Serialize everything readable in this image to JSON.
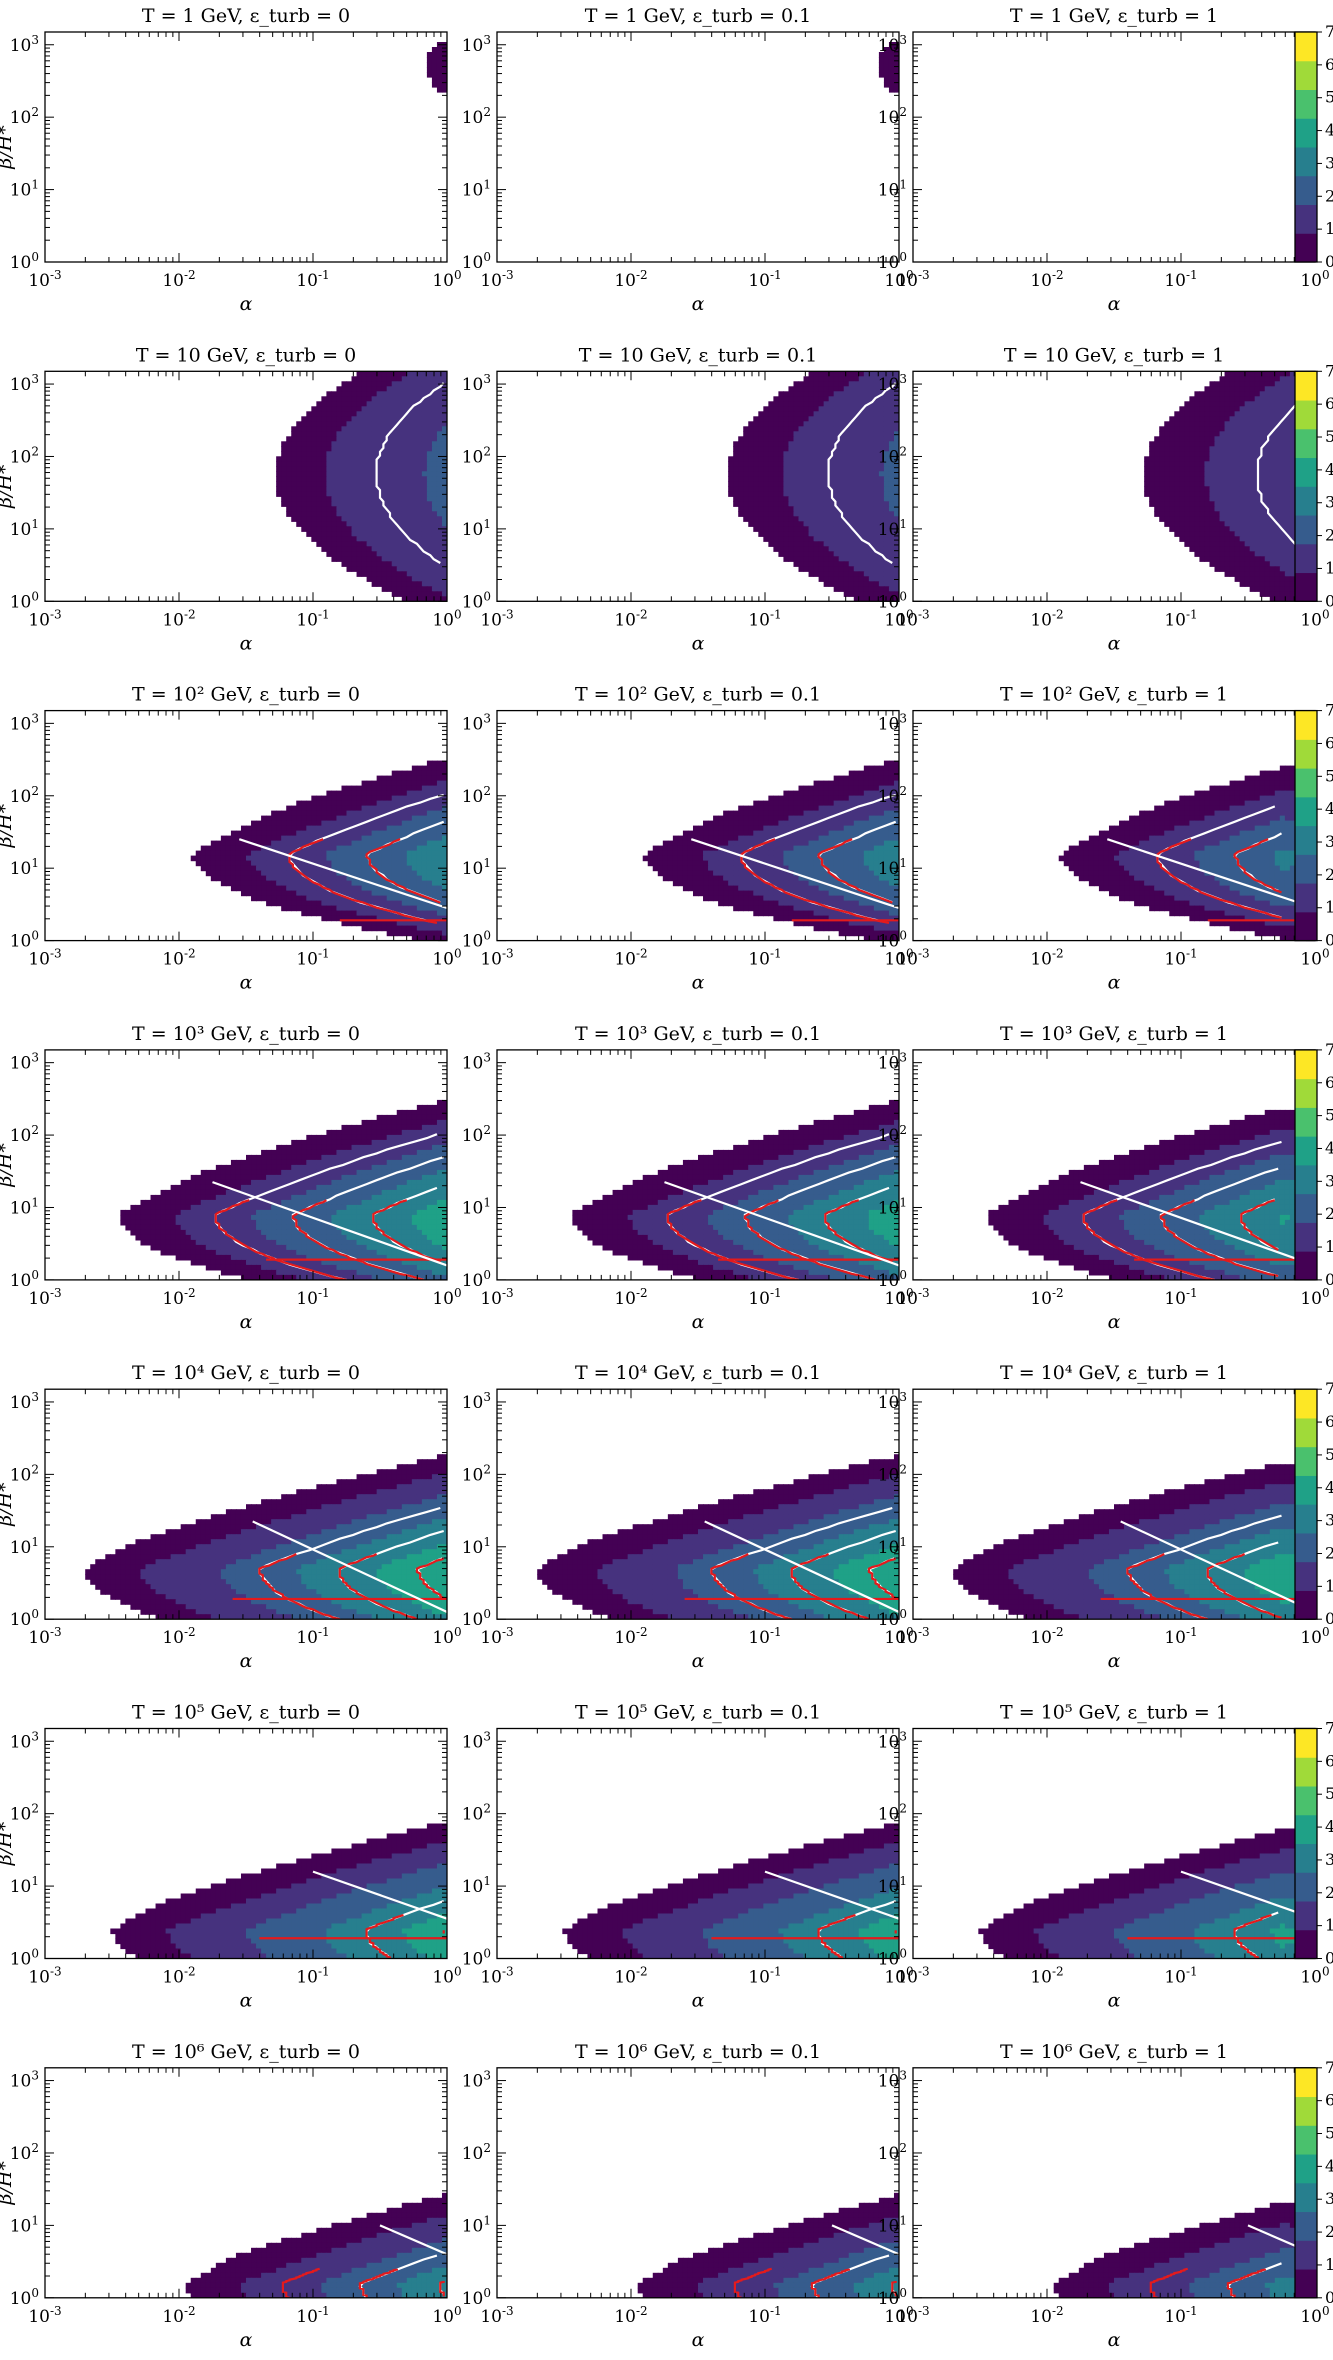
{
  "chart_data": {
    "type": "contour",
    "layout": {
      "rows": 7,
      "cols": 3
    },
    "x_axis": {
      "label": "α",
      "scale": "log",
      "range": [
        0.001,
        1
      ],
      "ticks": [
        0.001,
        0.01,
        0.1,
        1
      ],
      "tick_labels": [
        "10^-3",
        "10^-2",
        "10^-1",
        "10^0"
      ]
    },
    "y_axis": {
      "label": "β/H*",
      "scale": "log",
      "range": [
        1,
        1500
      ],
      "ticks": [
        1,
        10,
        100,
        1000
      ],
      "tick_labels": [
        "10^0",
        "10^1",
        "10^2",
        "10^3"
      ]
    },
    "colorbar": {
      "ticks": [
        0,
        1,
        2,
        3,
        4,
        5,
        6,
        7
      ],
      "colors": [
        "#440154",
        "#46327e",
        "#365c8d",
        "#277f8e",
        "#1fa187",
        "#4ac16d",
        "#a0da39",
        "#fde725"
      ]
    },
    "contour_colors": {
      "white": "#ffffff",
      "red": "#e41a1c"
    },
    "rows": [
      {
        "T": "T = 1 GeV",
        "temp_label": "1",
        "levels": {
          "start": -0.4,
          "slope": 0.0,
          "curv": 0.0,
          "tipAlpha": -0.15,
          "depth": 0.35,
          "reach": 1
        },
        "white": [],
        "red": [],
        "diag": null,
        "red_floor": false
      },
      {
        "T": "T = 10 GeV",
        "temp_label": "10",
        "levels": {
          "start": -1.28,
          "center": 1.75,
          "width": 1.45,
          "max": 2.3
        },
        "white": [
          1.5,
          2.5
        ],
        "red": [],
        "diag": null,
        "red_floor": false
      },
      {
        "T": "T = 10^2 GeV",
        "temp_label": "10^2",
        "levels": {
          "start": -1.9,
          "peakY": 1.2,
          "max": 4.0
        },
        "white": [
          1.5,
          2.5,
          3.5
        ],
        "red": [
          1.5,
          2.5,
          3.5
        ],
        "diag": [
          [
            -1.55,
            1.4
          ],
          [
            0.0,
            0.45
          ]
        ],
        "red_floor": true
      },
      {
        "T": "T = 10^3 GeV",
        "temp_label": "10^3",
        "levels": {
          "start": -2.45,
          "peakY": 0.9,
          "max": 5.5
        },
        "white": [
          1.5,
          2.5,
          3.5,
          4.5
        ],
        "red": [
          1.5,
          2.5,
          3.5,
          4.5,
          5.5
        ],
        "diag": [
          [
            -1.75,
            1.35
          ],
          [
            0.0,
            0.2
          ]
        ],
        "red_floor": true
      },
      {
        "T": "T = 10^4 GeV",
        "temp_label": "10^4",
        "levels": {
          "start": -2.7,
          "peakY": 0.7,
          "max": 6.6
        },
        "white": [
          2.5,
          3.5,
          4.5,
          5.5
        ],
        "red": [
          2.5,
          3.5,
          4.5,
          5.5,
          6.5
        ],
        "diag": [
          [
            -1.45,
            1.35
          ],
          [
            0.0,
            0.1
          ]
        ],
        "red_floor": true
      },
      {
        "T": "T = 10^5 GeV",
        "temp_label": "10^5",
        "levels": {
          "start": -2.5,
          "peakY": 0.4,
          "max": 7.0
        },
        "white": [
          3.5,
          4.5,
          5.5,
          6.5
        ],
        "red": [
          3.5,
          4.5,
          5.5,
          6.5
        ],
        "diag": [
          [
            -1.0,
            1.2
          ],
          [
            0.0,
            0.55
          ]
        ],
        "red_floor": true
      },
      {
        "T": "T = 10^6 GeV",
        "temp_label": "10^6",
        "levels": {
          "start": -1.95,
          "peakY": 0.2,
          "max": 4.2
        },
        "white": [
          2.5,
          3.5
        ],
        "red": [
          1.5,
          2.5,
          3.5
        ],
        "diag": [
          [
            -0.5,
            1.0
          ],
          [
            0.0,
            0.6
          ]
        ],
        "red_floor": false
      }
    ],
    "columns": [
      {
        "eps_label": "ε_turb = 0",
        "eps": "0"
      },
      {
        "eps_label": "ε_turb = 0.1",
        "eps": "0.1"
      },
      {
        "eps_label": "ε_turb = 1",
        "eps": "1"
      }
    ],
    "titles": [
      [
        "T = 1 GeV, ε_turb = 0",
        "T = 1 GeV, ε_turb = 0.1",
        "T = 1 GeV, ε_turb = 1"
      ],
      [
        "T = 10 GeV, ε_turb = 0",
        "T = 10 GeV, ε_turb = 0.1",
        "T = 10 GeV, ε_turb = 1"
      ],
      [
        "T = 10² GeV, ε_turb = 0",
        "T = 10² GeV, ε_turb = 0.1",
        "T = 10² GeV, ε_turb = 1"
      ],
      [
        "T = 10³ GeV, ε_turb = 0",
        "T = 10³ GeV, ε_turb = 0.1",
        "T = 10³ GeV, ε_turb = 1"
      ],
      [
        "T = 10⁴ GeV, ε_turb = 0",
        "T = 10⁴ GeV, ε_turb = 0.1",
        "T = 10⁴ GeV, ε_turb = 1"
      ],
      [
        "T = 10⁵ GeV, ε_turb = 0",
        "T = 10⁵ GeV, ε_turb = 0.1",
        "T = 10⁵ GeV, ε_turb = 1"
      ],
      [
        "T = 10⁶ GeV, ε_turb = 0",
        "T = 10⁶ GeV, ε_turb = 0.1",
        "T = 10⁶ GeV, ε_turb = 1"
      ]
    ]
  }
}
